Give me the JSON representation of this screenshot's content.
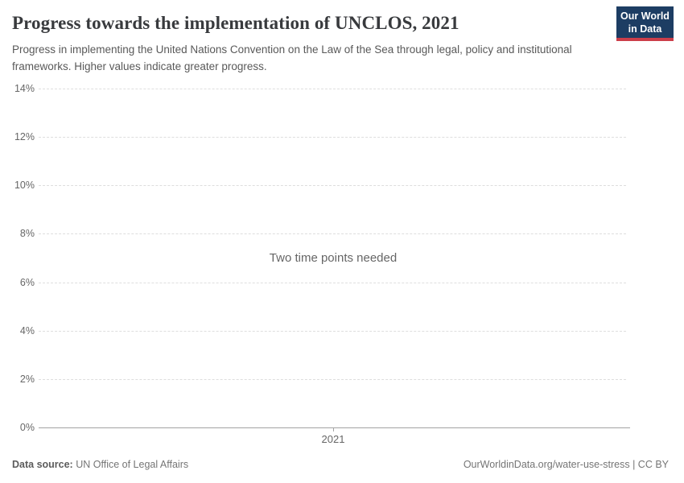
{
  "header": {
    "title": "Progress towards the implementation of UNCLOS, 2021",
    "subtitle": "Progress in implementing the United Nations Convention on the Law of the Sea through legal, policy and institutional frameworks. Higher values indicate greater progress.",
    "logo": {
      "line1": "Our World",
      "line2": "in Data"
    }
  },
  "chart_data": {
    "type": "line",
    "title": "Progress towards the implementation of UNCLOS, 2021",
    "message": "Two time points needed",
    "categories": [
      "2021"
    ],
    "series": [],
    "ylim": [
      0,
      14
    ],
    "ytick_values": [
      0,
      2,
      4,
      6,
      8,
      10,
      12,
      14
    ],
    "yticks": [
      "0%",
      "2%",
      "4%",
      "6%",
      "8%",
      "10%",
      "12%",
      "14%"
    ],
    "xticks": [
      "2021"
    ],
    "grid": true,
    "legend": "none"
  },
  "footer": {
    "data_source_label": "Data source:",
    "data_source_value": "UN Office of Legal Affairs",
    "attribution": "OurWorldinData.org/water-use-stress | CC BY"
  },
  "colors": {
    "logo_bg": "#1d3d63",
    "logo_accent": "#cc3e4a",
    "title": "#383a3d",
    "subtitle": "#595959",
    "tick_label": "#666666",
    "gridline": "#dedede",
    "axis_line": "#a3a3a3",
    "message": "#666666",
    "footer": "#757575"
  }
}
